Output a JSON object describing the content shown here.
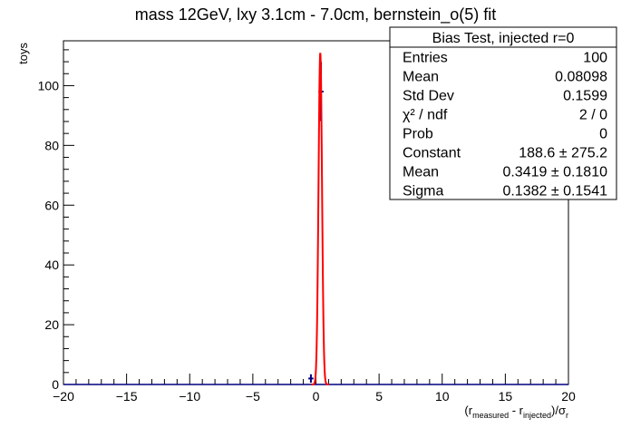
{
  "chart_data": {
    "type": "histogram",
    "title": "mass 12GeV, lxy 3.1cm - 7.0cm, bernstein_o(5) fit",
    "xlabel": {
      "open": "(r",
      "sub1": "measured",
      "mid": " - r",
      "sub2": "injected",
      "close": ")/σ",
      "sub3": "r"
    },
    "ylabel": "toys",
    "xlim": [
      -20,
      20
    ],
    "ylim": [
      0,
      115
    ],
    "x_ticks": [
      -20,
      -15,
      -10,
      -5,
      0,
      5,
      10,
      15,
      20
    ],
    "x_tick_labels": [
      "−20",
      "−15",
      "−10",
      "−5",
      "0",
      "5",
      "10",
      "15",
      "20"
    ],
    "y_ticks": [
      0,
      20,
      40,
      60,
      80,
      100
    ],
    "y_tick_labels": [
      "0",
      "20",
      "40",
      "60",
      "80",
      "100"
    ],
    "x_minor_step": 1,
    "y_minor_step": 4,
    "grid": false,
    "histogram": {
      "color": "#000080",
      "bin_width": 0.4,
      "points": [
        {
          "x": -0.4,
          "y": 2,
          "yerr": 1.41
        },
        {
          "x": 0.4,
          "y": 98,
          "yerr": 9.9
        }
      ]
    },
    "fit": {
      "type": "gaussian",
      "color": "#ff0000",
      "constant": 188.6,
      "mean": 0.3419,
      "sigma": 0.1382,
      "scale": 0.5882
    },
    "legend": {
      "placement": "top-right"
    }
  },
  "stats": {
    "title": "Bias Test, injected r=0",
    "rows": [
      {
        "label": "Entries",
        "value": "100"
      },
      {
        "label": "Mean",
        "value": "0.08098"
      },
      {
        "label": "Std Dev",
        "value": "0.1599"
      },
      {
        "label": "χ² / ndf",
        "value": "2 / 0"
      },
      {
        "label": "Prob",
        "value": "0"
      },
      {
        "label": "Constant",
        "value": "188.6 ± 275.2"
      },
      {
        "label": "Mean",
        "value": "0.3419 ± 0.1810"
      },
      {
        "label": "Sigma",
        "value": "0.1382 ± 0.1541"
      }
    ]
  }
}
